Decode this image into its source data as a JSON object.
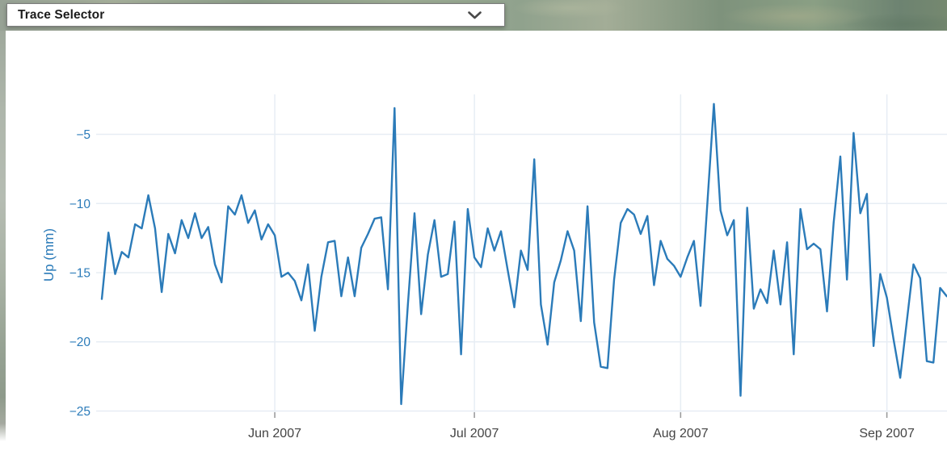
{
  "trace_selector": {
    "label": "Trace Selector"
  },
  "colors": {
    "trace_blue": "#2b7bb9",
    "grid": "#e7edf4",
    "x_tick_label": "#444444",
    "tick_mark": "#999999",
    "map_green": "#8fa28c"
  },
  "chart_data": {
    "type": "line",
    "title": "",
    "xlabel": "",
    "ylabel": "Up (mm)",
    "legend_position": "none",
    "grid_on": true,
    "x_tick_labels": [
      "Jun 2007",
      "Jul 2007",
      "Aug 2007",
      "Sep 2007"
    ],
    "x_tick_indices": [
      26,
      56,
      87,
      118
    ],
    "y_ticks": [
      -25,
      -20,
      -15,
      -10,
      -5
    ],
    "ylim": [
      -25.44,
      -2.11
    ],
    "series_name": "Up (mm)",
    "values": [
      -16.9,
      -12.1,
      -15.1,
      -13.5,
      -13.9,
      -11.5,
      -11.8,
      -9.4,
      -11.8,
      -16.4,
      -12.2,
      -13.6,
      -11.2,
      -12.5,
      -10.7,
      -12.5,
      -11.7,
      -14.4,
      -15.7,
      -10.2,
      -10.8,
      -9.4,
      -11.4,
      -10.5,
      -12.6,
      -11.5,
      -12.3,
      -15.3,
      -15.0,
      -15.6,
      -17.0,
      -14.4,
      -19.2,
      -15.3,
      -12.8,
      -12.7,
      -16.7,
      -13.9,
      -16.7,
      -13.2,
      -12.2,
      -11.1,
      -11.0,
      -16.2,
      -3.1,
      -24.5,
      -17.3,
      -10.7,
      -18.0,
      -13.7,
      -11.2,
      -15.3,
      -15.1,
      -11.3,
      -20.9,
      -10.4,
      -13.9,
      -14.6,
      -11.8,
      -13.4,
      -12.0,
      -14.8,
      -17.5,
      -13.4,
      -14.8,
      -6.8,
      -17.3,
      -20.2,
      -15.7,
      -14.1,
      -12.0,
      -13.4,
      -18.5,
      -10.2,
      -18.6,
      -21.8,
      -21.9,
      -15.5,
      -11.4,
      -10.4,
      -10.8,
      -12.2,
      -10.9,
      -15.9,
      -12.7,
      -14.0,
      -14.5,
      -15.3,
      -13.9,
      -12.7,
      -17.4,
      -10.1,
      -2.8,
      -10.5,
      -12.3,
      -11.2,
      -23.9,
      -10.3,
      -17.6,
      -16.2,
      -17.2,
      -13.4,
      -17.3,
      -12.8,
      -20.9,
      -10.4,
      -13.3,
      -12.9,
      -13.3,
      -17.8,
      -11.4,
      -6.6,
      -15.5,
      -4.9,
      -10.7,
      -9.3,
      -20.3,
      -15.1,
      -16.8,
      -19.8,
      -22.6,
      -18.5,
      -14.4,
      -15.4,
      -21.4,
      -21.5,
      -16.1,
      -16.7
    ]
  }
}
